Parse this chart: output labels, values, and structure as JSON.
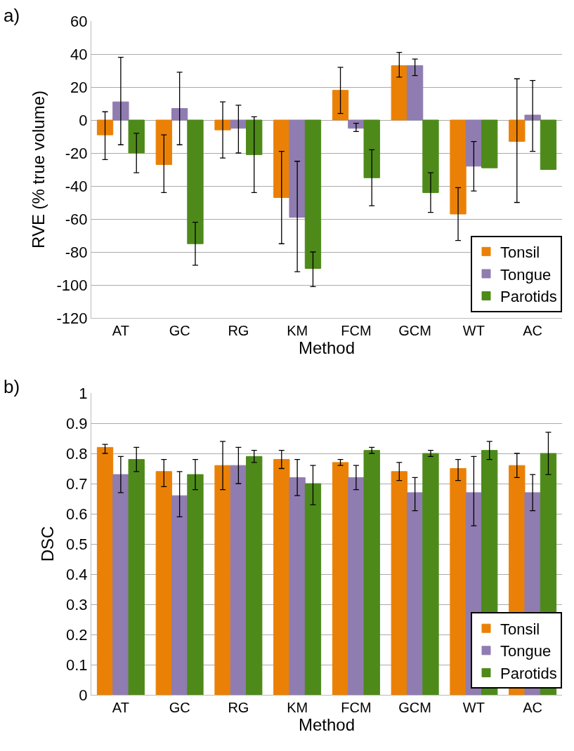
{
  "chart_data": [
    {
      "type": "bar",
      "ylabel": "RVE (% true volume)",
      "xlabel": "Method",
      "annotations": [
        "a)"
      ],
      "categories": [
        "AT",
        "GC",
        "RG",
        "KM",
        "FCM",
        "GCM",
        "WT",
        "AC"
      ],
      "ylim": [
        -120,
        60
      ],
      "yticks": [
        -120,
        -100,
        -80,
        -60,
        -40,
        -20,
        0,
        20,
        40,
        60
      ],
      "grid": "y",
      "legend": "bottom right",
      "series": [
        {
          "name": "Tonsil",
          "color": "#ea8106",
          "values": [
            -9,
            -27,
            -6,
            -47,
            18,
            33,
            -57,
            -13
          ],
          "errors": [
            [
              -24,
              5
            ],
            [
              -44,
              -9
            ],
            [
              -23,
              11
            ],
            [
              -75,
              -19
            ],
            [
              4,
              32
            ],
            [
              26,
              41
            ],
            [
              -73,
              -41
            ],
            [
              -50,
              25
            ]
          ]
        },
        {
          "name": "Tongue",
          "color": "#8f7cb0",
          "values": [
            11,
            7,
            -5,
            -59,
            -5,
            33,
            -28,
            3
          ],
          "errors": [
            [
              -15,
              38
            ],
            [
              -15,
              29
            ],
            [
              -20,
              9
            ],
            [
              -92,
              -25
            ],
            [
              -7,
              -2
            ],
            [
              27,
              37
            ],
            [
              -43,
              -13
            ],
            [
              -19,
              24
            ]
          ]
        },
        {
          "name": "Parotids",
          "color": "#4e8a1a",
          "values": [
            -20,
            -75,
            -21,
            -90,
            -35,
            -44,
            -29,
            -30
          ],
          "errors": [
            [
              -32,
              -8
            ],
            [
              -88,
              -62
            ],
            [
              -44,
              2
            ],
            [
              -101,
              -80
            ],
            [
              -52,
              -18
            ],
            [
              -56,
              -32
            ],
            null,
            null
          ]
        }
      ]
    },
    {
      "type": "bar",
      "ylabel": "DSC",
      "xlabel": "Method",
      "annotations": [
        "b)"
      ],
      "categories": [
        "AT",
        "GC",
        "RG",
        "KM",
        "FCM",
        "GCM",
        "WT",
        "AC"
      ],
      "ylim": [
        0,
        1
      ],
      "yticks": [
        0,
        0.1,
        0.2,
        0.3,
        0.4,
        0.5,
        0.6,
        0.7,
        0.8,
        0.9,
        1
      ],
      "grid": "y",
      "legend": "bottom right",
      "series": [
        {
          "name": "Tonsil",
          "color": "#ea8106",
          "values": [
            0.82,
            0.74,
            0.76,
            0.78,
            0.77,
            0.74,
            0.75,
            0.76
          ],
          "errors": [
            [
              0.8,
              0.83
            ],
            [
              0.69,
              0.78
            ],
            [
              0.68,
              0.84
            ],
            [
              0.75,
              0.81
            ],
            [
              0.76,
              0.78
            ],
            [
              0.71,
              0.77
            ],
            [
              0.71,
              0.78
            ],
            [
              0.72,
              0.8
            ]
          ]
        },
        {
          "name": "Tongue",
          "color": "#8f7cb0",
          "values": [
            0.73,
            0.66,
            0.76,
            0.72,
            0.72,
            0.67,
            0.67,
            0.67
          ],
          "errors": [
            [
              0.67,
              0.79
            ],
            [
              0.59,
              0.74
            ],
            [
              0.7,
              0.82
            ],
            [
              0.66,
              0.78
            ],
            [
              0.68,
              0.76
            ],
            [
              0.61,
              0.72
            ],
            [
              0.56,
              0.79
            ],
            [
              0.61,
              0.73
            ]
          ]
        },
        {
          "name": "Parotids",
          "color": "#4e8a1a",
          "values": [
            0.78,
            0.73,
            0.79,
            0.7,
            0.81,
            0.8,
            0.81,
            0.8
          ],
          "errors": [
            [
              0.74,
              0.82
            ],
            [
              0.68,
              0.78
            ],
            [
              0.77,
              0.81
            ],
            [
              0.63,
              0.76
            ],
            [
              0.8,
              0.82
            ],
            [
              0.79,
              0.81
            ],
            [
              0.78,
              0.84
            ],
            [
              0.73,
              0.87
            ]
          ]
        }
      ]
    }
  ]
}
